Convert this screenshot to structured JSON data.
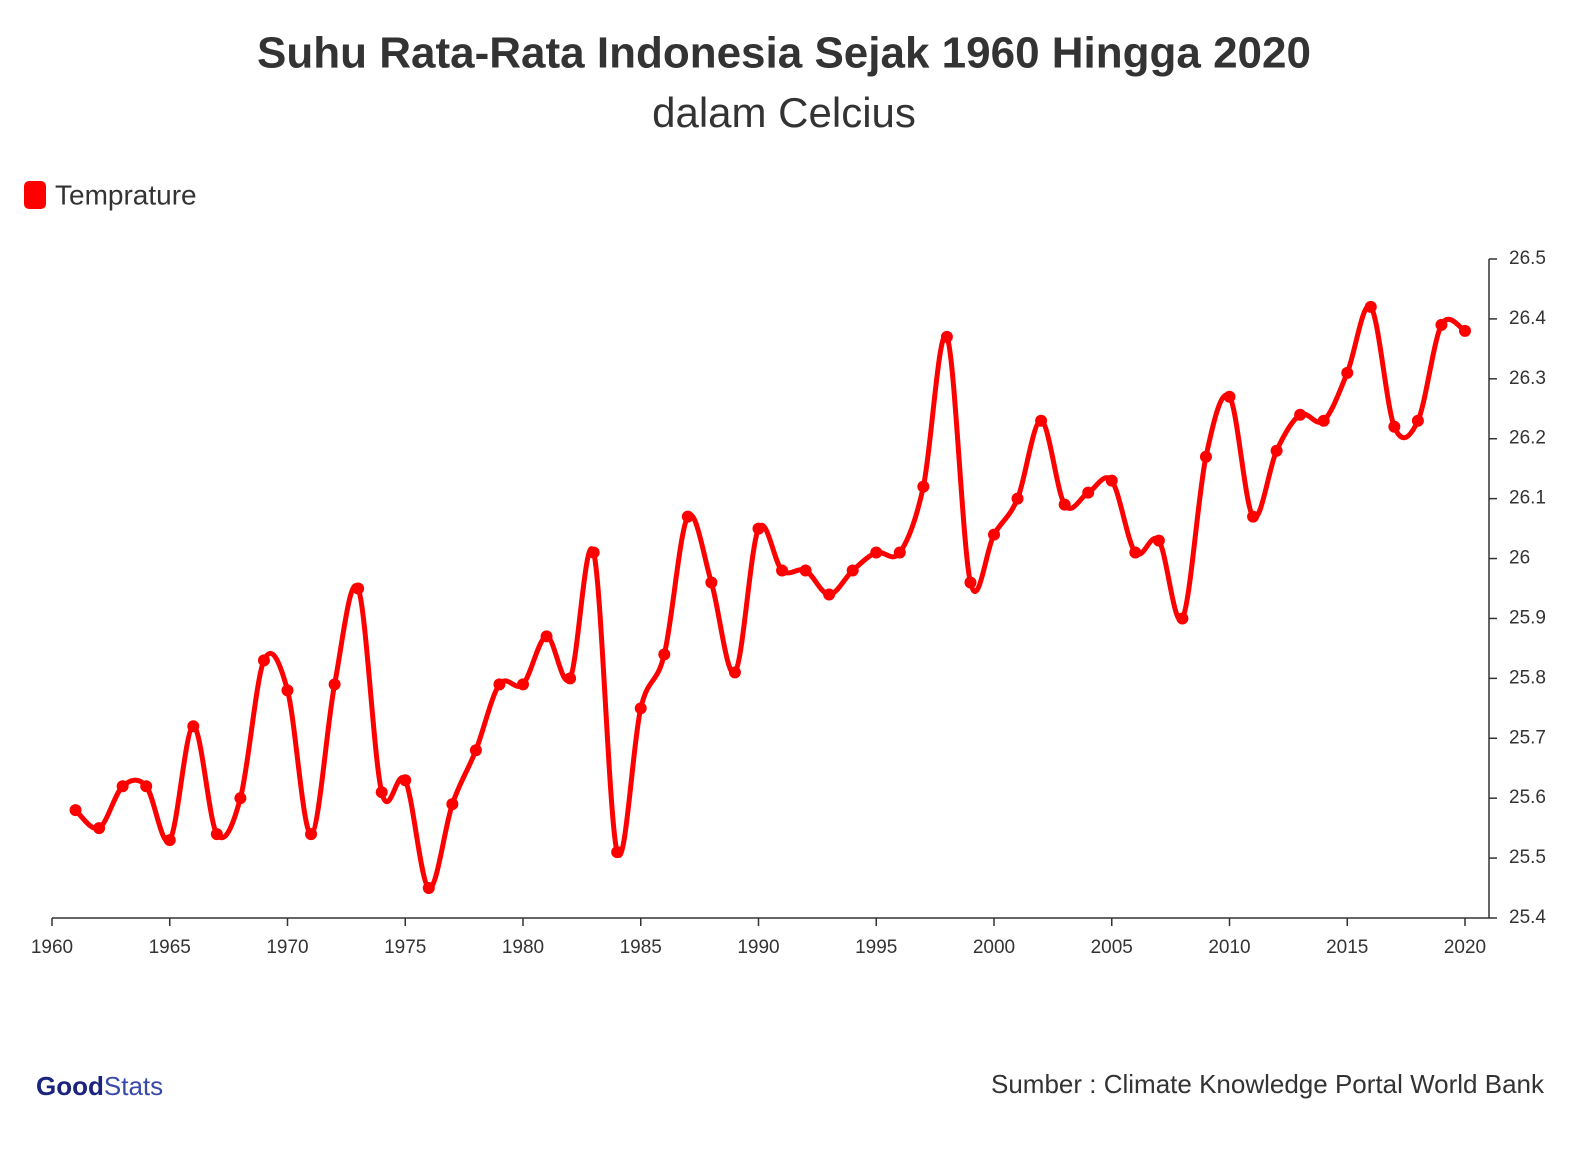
{
  "chart_data": {
    "type": "line",
    "title": "Suhu Rata-Rata Indonesia Sejak 1960 Hingga 2020",
    "subtitle": "dalam Celcius",
    "x": [
      1961,
      1962,
      1963,
      1964,
      1965,
      1966,
      1967,
      1968,
      1969,
      1970,
      1971,
      1972,
      1973,
      1974,
      1975,
      1976,
      1977,
      1978,
      1979,
      1980,
      1981,
      1982,
      1983,
      1984,
      1985,
      1986,
      1987,
      1988,
      1989,
      1990,
      1991,
      1992,
      1993,
      1994,
      1995,
      1996,
      1997,
      1998,
      1999,
      2000,
      2001,
      2002,
      2003,
      2004,
      2005,
      2006,
      2007,
      2008,
      2009,
      2010,
      2011,
      2012,
      2013,
      2014,
      2015,
      2016,
      2017,
      2018,
      2019,
      2020
    ],
    "series": [
      {
        "name": "Temprature",
        "color": "#ff0000",
        "values": [
          25.58,
          25.55,
          25.62,
          25.62,
          25.53,
          25.72,
          25.54,
          25.6,
          25.83,
          25.78,
          25.54,
          25.79,
          25.95,
          25.61,
          25.63,
          25.45,
          25.59,
          25.68,
          25.79,
          25.79,
          25.87,
          25.8,
          26.01,
          25.51,
          25.75,
          25.84,
          26.07,
          25.96,
          25.81,
          26.05,
          25.98,
          25.98,
          25.94,
          25.98,
          26.01,
          26.01,
          26.12,
          26.37,
          25.96,
          26.04,
          26.1,
          26.23,
          26.09,
          26.11,
          26.13,
          26.01,
          26.03,
          25.9,
          26.17,
          26.27,
          26.07,
          26.18,
          26.24,
          26.23,
          26.31,
          26.42,
          26.22,
          26.23,
          26.39,
          26.38
        ]
      }
    ],
    "xlim": [
      1960,
      2020
    ],
    "xticks": [
      1960,
      1965,
      1970,
      1975,
      1980,
      1985,
      1990,
      1995,
      2000,
      2005,
      2010,
      2015,
      2020
    ],
    "ylim": [
      25.4,
      26.5
    ],
    "yticks": [
      25.4,
      25.5,
      25.6,
      25.7,
      25.8,
      25.9,
      26,
      26.1,
      26.2,
      26.3,
      26.4,
      26.5
    ],
    "legend": "top-left",
    "source": "Sumber : Climate Knowledge Portal World Bank",
    "logo_parts": [
      "Good",
      "Stats"
    ]
  }
}
